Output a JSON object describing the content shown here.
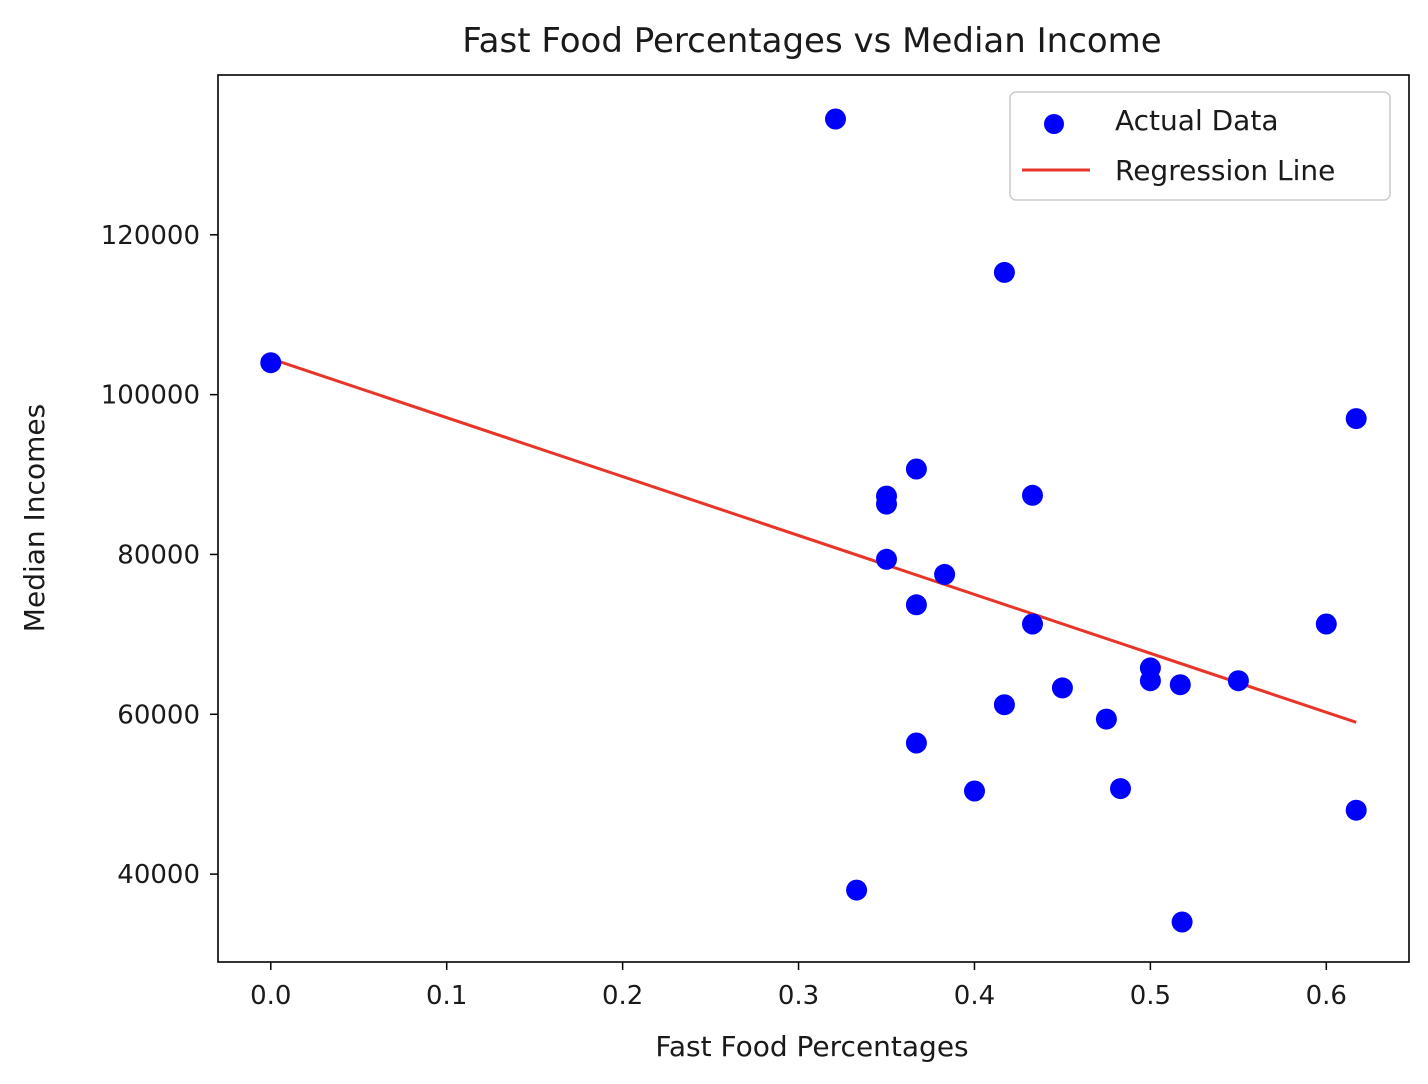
{
  "chart_data": {
    "type": "scatter",
    "title": "Fast Food Percentages vs Median Income",
    "xlabel": "Fast Food Percentages",
    "ylabel": "Median Incomes",
    "xlim": [
      -0.03,
      0.647
    ],
    "ylim": [
      29000,
      140000
    ],
    "xticks": [
      0.0,
      0.1,
      0.2,
      0.3,
      0.4,
      0.5,
      0.6
    ],
    "xtick_labels": [
      "0.0",
      "0.1",
      "0.2",
      "0.3",
      "0.4",
      "0.5",
      "0.6"
    ],
    "yticks": [
      40000,
      60000,
      80000,
      100000,
      120000
    ],
    "ytick_labels": [
      "40000",
      "60000",
      "80000",
      "100000",
      "120000"
    ],
    "grid": false,
    "legend_position": "top-right",
    "series": [
      {
        "name": "Actual Data",
        "kind": "scatter",
        "color": "#0000ff",
        "points": [
          [
            0.0,
            104000
          ],
          [
            0.321,
            134500
          ],
          [
            0.333,
            38000
          ],
          [
            0.35,
            87300
          ],
          [
            0.35,
            86300
          ],
          [
            0.35,
            79400
          ],
          [
            0.367,
            90700
          ],
          [
            0.367,
            73700
          ],
          [
            0.367,
            56400
          ],
          [
            0.383,
            77500
          ],
          [
            0.4,
            50400
          ],
          [
            0.417,
            115300
          ],
          [
            0.417,
            61200
          ],
          [
            0.433,
            87400
          ],
          [
            0.433,
            71300
          ],
          [
            0.45,
            63300
          ],
          [
            0.475,
            59400
          ],
          [
            0.483,
            50700
          ],
          [
            0.5,
            65800
          ],
          [
            0.5,
            64200
          ],
          [
            0.517,
            63700
          ],
          [
            0.518,
            34000
          ],
          [
            0.55,
            64200
          ],
          [
            0.6,
            71300
          ],
          [
            0.617,
            97000
          ],
          [
            0.617,
            48000
          ]
        ]
      },
      {
        "name": "Regression Line",
        "kind": "line",
        "color": "#e8352a",
        "points": [
          [
            0.0,
            104500
          ],
          [
            0.617,
            59000
          ]
        ]
      }
    ]
  }
}
